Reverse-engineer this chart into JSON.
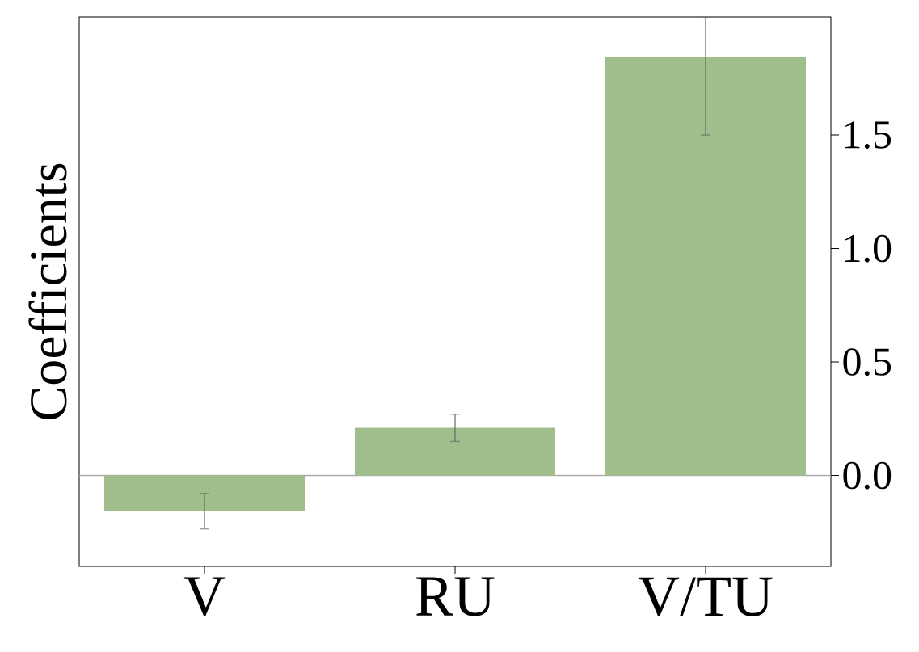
{
  "chart_data": {
    "type": "bar",
    "ylabel": "Coefficients",
    "categories": [
      "V",
      "RU",
      "V/TU"
    ],
    "values": [
      -0.157,
      0.21,
      1.845
    ],
    "errors": [
      0.078,
      0.06,
      [
        1.5,
        2.02
      ]
    ],
    "color": "#9fbe8c",
    "ylim": [
      -0.4,
      2.02
    ],
    "yticks": [
      {
        "value": 0,
        "label": "0.0"
      },
      {
        "value": 0.5,
        "label": "0.5"
      },
      {
        "value": 1,
        "label": "1.0"
      },
      {
        "value": 1.5,
        "label": "1.5"
      }
    ],
    "ref_lines": [
      {
        "axis": "y",
        "value": 0,
        "color": "#aaaaaa"
      }
    ],
    "grid": false
  }
}
